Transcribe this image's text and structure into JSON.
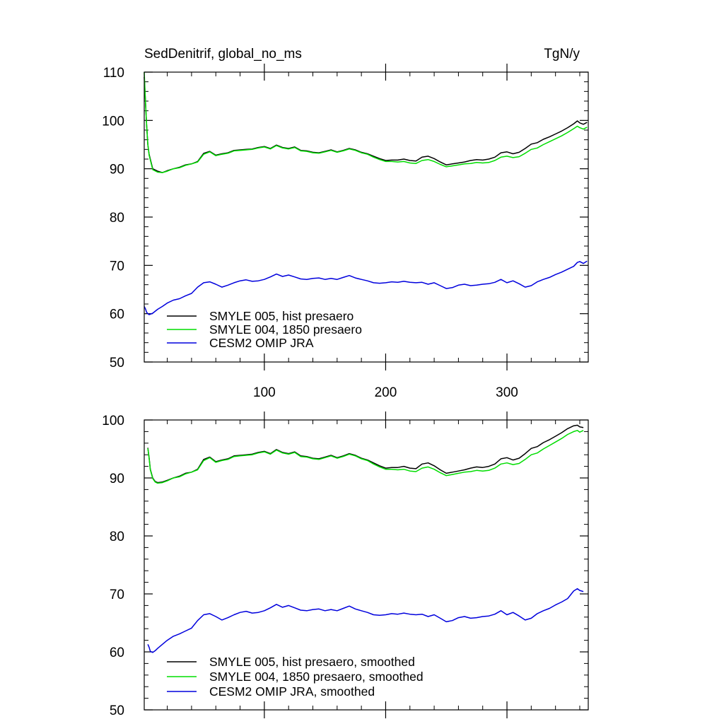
{
  "chart_data": [
    {
      "type": "line",
      "title": "SedDenitrif, global_no_ms",
      "units": "TgN/y",
      "xlim": [
        1,
        367
      ],
      "ylim": [
        50,
        110
      ],
      "yticks": [
        50,
        60,
        70,
        80,
        90,
        100,
        110
      ],
      "xticks": [
        100,
        200,
        300
      ],
      "xtick_labels": [
        "100",
        "200",
        "300"
      ],
      "legend_position": "lower-left",
      "series": [
        {
          "name": "SMYLE 005, hist presaero",
          "color": "#000000",
          "x": [
            1,
            2,
            3,
            4,
            5,
            8,
            12,
            16,
            20,
            25,
            30,
            35,
            40,
            45,
            50,
            55,
            60,
            65,
            70,
            75,
            80,
            85,
            90,
            95,
            100,
            105,
            110,
            115,
            120,
            125,
            130,
            135,
            140,
            145,
            150,
            155,
            160,
            165,
            170,
            175,
            180,
            185,
            190,
            195,
            200,
            205,
            210,
            215,
            220,
            225,
            230,
            235,
            240,
            245,
            250,
            255,
            260,
            265,
            270,
            275,
            280,
            285,
            290,
            295,
            300,
            305,
            310,
            315,
            320,
            325,
            330,
            335,
            340,
            345,
            350,
            355,
            358,
            360,
            363,
            366
          ],
          "y": [
            109,
            104,
            99,
            95,
            93,
            90,
            89.5,
            89.2,
            89.6,
            90,
            90.3,
            90.8,
            91,
            91.5,
            93.2,
            93.6,
            92.8,
            93.1,
            93.3,
            93.8,
            93.9,
            94,
            94.1,
            94.4,
            94.6,
            94.2,
            94.9,
            94.4,
            94.2,
            94.5,
            93.8,
            93.7,
            93.4,
            93.3,
            93.6,
            93.9,
            93.5,
            93.8,
            94.2,
            93.9,
            93.4,
            93.1,
            92.6,
            92.1,
            91.7,
            91.8,
            91.8,
            92,
            91.7,
            91.6,
            92.4,
            92.6,
            92.1,
            91.4,
            90.8,
            91,
            91.2,
            91.4,
            91.7,
            91.9,
            91.8,
            92,
            92.4,
            93.3,
            93.5,
            93.1,
            93.4,
            94.2,
            95.1,
            95.4,
            96.1,
            96.6,
            97.2,
            97.8,
            98.5,
            99.3,
            99.9,
            99.5,
            99.2,
            99.6
          ]
        },
        {
          "name": "SMYLE 004, 1850 presaero",
          "color": "#00dd00",
          "x": [
            1,
            2,
            3,
            4,
            5,
            8,
            12,
            16,
            20,
            25,
            30,
            35,
            40,
            45,
            50,
            55,
            60,
            65,
            70,
            75,
            80,
            85,
            90,
            95,
            100,
            105,
            110,
            115,
            120,
            125,
            130,
            135,
            140,
            145,
            150,
            155,
            160,
            165,
            170,
            175,
            180,
            185,
            190,
            195,
            200,
            205,
            210,
            215,
            220,
            225,
            230,
            235,
            240,
            245,
            250,
            255,
            260,
            265,
            270,
            275,
            280,
            285,
            290,
            295,
            300,
            305,
            310,
            315,
            320,
            325,
            330,
            335,
            340,
            345,
            350,
            355,
            358,
            360,
            363,
            366
          ],
          "y": [
            110,
            104,
            99,
            95,
            92.8,
            89.8,
            89.3,
            89.2,
            89.5,
            90,
            90.2,
            90.7,
            91,
            91.4,
            93,
            93.5,
            92.7,
            93,
            93.2,
            93.7,
            93.8,
            93.9,
            94,
            94.3,
            94.5,
            94.1,
            94.8,
            94.3,
            94.1,
            94.4,
            93.7,
            93.6,
            93.3,
            93.2,
            93.5,
            93.8,
            93.4,
            93.7,
            94.1,
            93.8,
            93.3,
            93,
            92.4,
            91.9,
            91.5,
            91.5,
            91.4,
            91.5,
            91.2,
            91.1,
            91.7,
            91.9,
            91.5,
            90.9,
            90.4,
            90.6,
            90.8,
            91,
            91.1,
            91.3,
            91.2,
            91.3,
            91.7,
            92.4,
            92.6,
            92.3,
            92.5,
            93.2,
            94,
            94.3,
            95,
            95.6,
            96.2,
            96.8,
            97.5,
            98.3,
            98.8,
            98.5,
            98.2,
            98.6
          ]
        },
        {
          "name": "CESM2 OMIP JRA",
          "color": "#0000dd",
          "x": [
            1,
            2,
            3,
            4,
            5,
            8,
            12,
            16,
            20,
            25,
            30,
            35,
            40,
            45,
            50,
            55,
            60,
            65,
            70,
            75,
            80,
            85,
            90,
            95,
            100,
            105,
            110,
            115,
            120,
            125,
            130,
            135,
            140,
            145,
            150,
            155,
            160,
            165,
            170,
            175,
            180,
            185,
            190,
            195,
            200,
            205,
            210,
            215,
            220,
            225,
            230,
            235,
            240,
            245,
            250,
            255,
            260,
            265,
            270,
            275,
            280,
            285,
            290,
            295,
            300,
            305,
            310,
            315,
            320,
            325,
            330,
            335,
            340,
            345,
            350,
            355,
            358,
            360,
            363,
            366
          ],
          "y": [
            61.5,
            61,
            60.3,
            60,
            59.8,
            60.1,
            60.9,
            61.5,
            62.2,
            62.8,
            63.1,
            63.7,
            64.2,
            65.5,
            66.4,
            66.6,
            66.1,
            65.5,
            65.9,
            66.4,
            66.8,
            67,
            66.7,
            66.8,
            67.1,
            67.6,
            68.2,
            67.7,
            68,
            67.6,
            67.2,
            67.1,
            67.3,
            67.4,
            67.1,
            67.3,
            67.1,
            67.5,
            67.9,
            67.4,
            67.1,
            66.8,
            66.4,
            66.3,
            66.4,
            66.6,
            66.5,
            66.7,
            66.5,
            66.4,
            66.5,
            66.1,
            66.4,
            65.8,
            65.2,
            65.4,
            65.9,
            66.1,
            65.8,
            65.9,
            66.1,
            66.2,
            66.5,
            67.1,
            66.4,
            66.8,
            66.2,
            65.5,
            65.8,
            66.6,
            67.1,
            67.5,
            68.1,
            68.6,
            69.2,
            69.8,
            70.6,
            70.8,
            70.4,
            70.9
          ]
        }
      ]
    },
    {
      "type": "line",
      "xlim": [
        1,
        367
      ],
      "ylim": [
        50,
        100
      ],
      "yticks": [
        50,
        60,
        70,
        80,
        90,
        100
      ],
      "xticks": [
        100,
        200,
        300
      ],
      "legend_position": "lower-left",
      "series": [
        {
          "name": "SMYLE 005, hist presaero, smoothed",
          "color": "#000000",
          "x": [
            4,
            5,
            6,
            8,
            10,
            12,
            16,
            20,
            25,
            30,
            35,
            40,
            45,
            50,
            55,
            60,
            65,
            70,
            75,
            80,
            85,
            90,
            95,
            100,
            105,
            110,
            115,
            120,
            125,
            130,
            135,
            140,
            145,
            150,
            155,
            160,
            165,
            170,
            175,
            180,
            185,
            190,
            195,
            200,
            205,
            210,
            215,
            220,
            225,
            230,
            235,
            240,
            245,
            250,
            255,
            260,
            265,
            270,
            275,
            280,
            285,
            290,
            295,
            300,
            305,
            310,
            315,
            320,
            325,
            330,
            335,
            340,
            345,
            350,
            355,
            358,
            360,
            363
          ],
          "y": [
            95.2,
            93.5,
            91.5,
            90,
            89.4,
            89.2,
            89.3,
            89.6,
            90,
            90.3,
            90.8,
            91,
            91.5,
            93.2,
            93.6,
            92.8,
            93.1,
            93.3,
            93.8,
            93.9,
            94,
            94.1,
            94.4,
            94.6,
            94.2,
            94.9,
            94.4,
            94.2,
            94.5,
            93.8,
            93.7,
            93.4,
            93.3,
            93.6,
            93.9,
            93.5,
            93.8,
            94.2,
            93.9,
            93.4,
            93.1,
            92.6,
            92.1,
            91.7,
            91.8,
            91.8,
            92,
            91.7,
            91.6,
            92.4,
            92.6,
            92.1,
            91.4,
            90.8,
            91,
            91.2,
            91.4,
            91.7,
            91.9,
            91.8,
            92,
            92.4,
            93.3,
            93.5,
            93.1,
            93.4,
            94.2,
            95.1,
            95.4,
            96.1,
            96.6,
            97.2,
            97.8,
            98.5,
            99,
            99.1,
            98.8,
            98.7
          ]
        },
        {
          "name": "SMYLE 004, 1850 presaero, smoothed",
          "color": "#00dd00",
          "x": [
            4,
            5,
            6,
            8,
            10,
            12,
            16,
            20,
            25,
            30,
            35,
            40,
            45,
            50,
            55,
            60,
            65,
            70,
            75,
            80,
            85,
            90,
            95,
            100,
            105,
            110,
            115,
            120,
            125,
            130,
            135,
            140,
            145,
            150,
            155,
            160,
            165,
            170,
            175,
            180,
            185,
            190,
            195,
            200,
            205,
            210,
            215,
            220,
            225,
            230,
            235,
            240,
            245,
            250,
            255,
            260,
            265,
            270,
            275,
            280,
            285,
            290,
            295,
            300,
            305,
            310,
            315,
            320,
            325,
            330,
            335,
            340,
            345,
            350,
            355,
            358,
            360,
            363
          ],
          "y": [
            95.1,
            93.4,
            91.4,
            89.9,
            89.3,
            89.1,
            89.2,
            89.5,
            90,
            90.2,
            90.7,
            91,
            91.4,
            93,
            93.5,
            92.7,
            93,
            93.2,
            93.7,
            93.8,
            93.9,
            94,
            94.3,
            94.5,
            94.1,
            94.8,
            94.3,
            94.1,
            94.4,
            93.7,
            93.6,
            93.3,
            93.2,
            93.5,
            93.8,
            93.4,
            93.7,
            94.1,
            93.8,
            93.3,
            93,
            92.4,
            91.9,
            91.5,
            91.5,
            91.4,
            91.5,
            91.2,
            91.1,
            91.7,
            91.9,
            91.5,
            90.9,
            90.4,
            90.6,
            90.8,
            91,
            91.1,
            91.3,
            91.2,
            91.3,
            91.7,
            92.4,
            92.6,
            92.3,
            92.5,
            93.2,
            94,
            94.3,
            95,
            95.6,
            96.2,
            96.8,
            97.5,
            98,
            98.2,
            97.9,
            98.2
          ]
        },
        {
          "name": "CESM2 OMIP JRA, smoothed",
          "color": "#0000dd",
          "x": [
            4,
            5,
            6,
            8,
            10,
            12,
            16,
            20,
            25,
            30,
            35,
            40,
            45,
            50,
            55,
            60,
            65,
            70,
            75,
            80,
            85,
            90,
            95,
            100,
            105,
            110,
            115,
            120,
            125,
            130,
            135,
            140,
            145,
            150,
            155,
            160,
            165,
            170,
            175,
            180,
            185,
            190,
            195,
            200,
            205,
            210,
            215,
            220,
            225,
            230,
            235,
            240,
            245,
            250,
            255,
            260,
            265,
            270,
            275,
            280,
            285,
            290,
            295,
            300,
            305,
            310,
            315,
            320,
            325,
            330,
            335,
            340,
            345,
            350,
            355,
            358,
            360,
            363
          ],
          "y": [
            61.3,
            60.8,
            60.1,
            59.9,
            60.2,
            60.6,
            61.3,
            62,
            62.7,
            63.1,
            63.6,
            64.1,
            65.4,
            66.4,
            66.6,
            66.1,
            65.5,
            65.9,
            66.4,
            66.8,
            67,
            66.7,
            66.8,
            67.1,
            67.6,
            68.2,
            67.7,
            68,
            67.6,
            67.2,
            67.1,
            67.3,
            67.4,
            67.1,
            67.3,
            67.1,
            67.5,
            67.9,
            67.4,
            67.1,
            66.8,
            66.4,
            66.3,
            66.4,
            66.6,
            66.5,
            66.7,
            66.5,
            66.4,
            66.5,
            66.1,
            66.4,
            65.8,
            65.2,
            65.4,
            65.9,
            66.1,
            65.8,
            65.9,
            66.1,
            66.2,
            66.5,
            67.1,
            66.4,
            66.8,
            66.2,
            65.5,
            65.8,
            66.6,
            67.1,
            67.5,
            68.1,
            68.6,
            69.2,
            70.5,
            70.9,
            70.6,
            70.4
          ]
        }
      ]
    }
  ]
}
